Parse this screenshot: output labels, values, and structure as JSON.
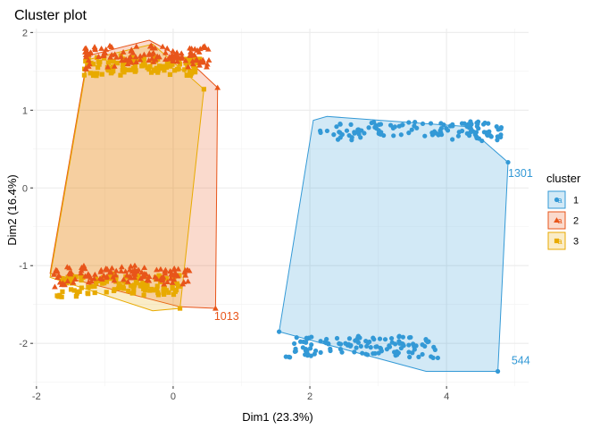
{
  "chart_data": {
    "type": "scatter",
    "title": "Cluster plot",
    "xlabel": "Dim1 (23.3%)",
    "ylabel": "Dim2 (16.4%)",
    "xlim": [
      -2.05,
      5.2
    ],
    "ylim": [
      -2.55,
      2.05
    ],
    "xticks": [
      -2,
      0,
      2,
      4
    ],
    "yticks": [
      -2,
      -1,
      0,
      1,
      2
    ],
    "xtick_labels": [
      "-2",
      "0",
      "2",
      "4"
    ],
    "ytick_labels": [
      "-2",
      "-1",
      "0",
      "1",
      "2"
    ],
    "grid": true,
    "legend": {
      "title": "cluster",
      "position": "right",
      "entries": [
        {
          "label": "1",
          "color": "#3399D6",
          "marker": "circle"
        },
        {
          "label": "2",
          "color": "#E8551A",
          "marker": "triangle"
        },
        {
          "label": "3",
          "color": "#E8AA00",
          "marker": "square"
        }
      ]
    },
    "series": [
      {
        "name": "1",
        "color": "#3399D6",
        "marker": "circle",
        "hull": [
          [
            2.25,
            0.92
          ],
          [
            4.3,
            0.79
          ],
          [
            4.9,
            0.33
          ],
          [
            4.75,
            -2.36
          ],
          [
            3.7,
            -2.36
          ],
          [
            1.55,
            -1.85
          ],
          [
            2.05,
            0.87
          ]
        ],
        "groups": [
          {
            "x": [
              2.15,
              4.85
            ],
            "y": [
              0.48,
              0.92
            ]
          },
          {
            "x": [
              1.6,
              3.9
            ],
            "y": [
              -2.35,
              -1.84
            ]
          }
        ],
        "extra_points": [
          [
            4.9,
            0.33
          ],
          [
            4.75,
            -2.36
          ],
          [
            4.3,
            0.79
          ],
          [
            1.55,
            -1.85
          ]
        ]
      },
      {
        "name": "2",
        "color": "#E8551A",
        "marker": "triangle",
        "hull": [
          [
            -0.35,
            1.9
          ],
          [
            0.25,
            1.62
          ],
          [
            0.65,
            1.29
          ],
          [
            0.62,
            -1.55
          ],
          [
            0.1,
            -1.53
          ],
          [
            -1.8,
            -1.1
          ],
          [
            -1.25,
            1.7
          ]
        ],
        "groups": [
          {
            "x": [
              -1.3,
              0.55
            ],
            "y": [
              1.4,
              1.9
            ]
          },
          {
            "x": [
              -1.75,
              0.25
            ],
            "y": [
              -1.38,
              -0.95
            ]
          }
        ],
        "extra_points": [
          [
            0.65,
            1.29
          ],
          [
            0.62,
            -1.55
          ]
        ]
      },
      {
        "name": "3",
        "color": "#E8AA00",
        "marker": "square",
        "hull": [
          [
            -0.3,
            1.85
          ],
          [
            0.45,
            1.27
          ],
          [
            0.1,
            -1.55
          ],
          [
            -0.3,
            -1.58
          ],
          [
            -1.8,
            -1.15
          ],
          [
            -1.25,
            1.65
          ]
        ],
        "groups": [
          {
            "x": [
              -1.3,
              0.4
            ],
            "y": [
              1.3,
              1.75
            ]
          },
          {
            "x": [
              -1.7,
              0.1
            ],
            "y": [
              -1.55,
              -1.05
            ]
          }
        ],
        "extra_points": [
          [
            0.45,
            1.27
          ],
          [
            0.1,
            -1.55
          ]
        ]
      }
    ],
    "annotations": [
      {
        "text": "1301",
        "x": 4.9,
        "y": 0.14,
        "color": "#3399D6"
      },
      {
        "text": "544",
        "x": 4.95,
        "y": -2.27,
        "color": "#3399D6"
      },
      {
        "text": "1013",
        "x": 0.6,
        "y": -1.7,
        "color": "#E8551A"
      }
    ]
  }
}
